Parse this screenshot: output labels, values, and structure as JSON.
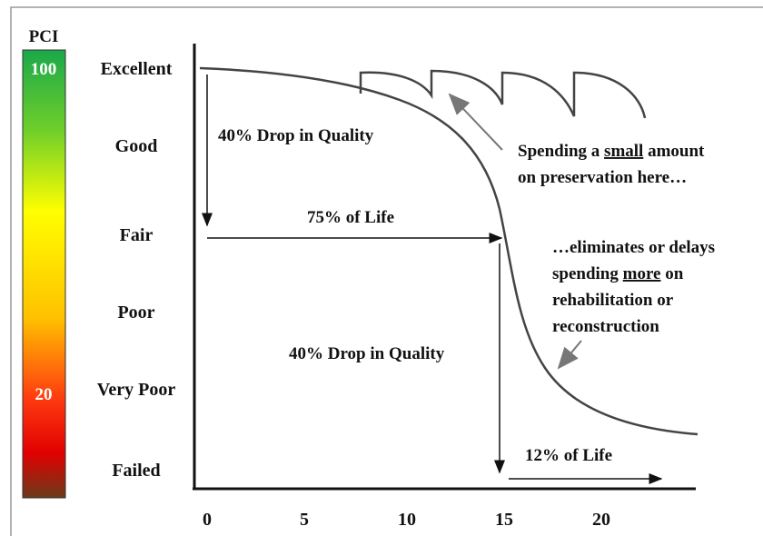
{
  "scale": {
    "title": "PCI",
    "top": "100",
    "low": "20"
  },
  "levels": [
    "Excellent",
    "Good",
    "Fair",
    "Poor",
    "Very Poor",
    "Failed"
  ],
  "x_axis": [
    "0",
    "5",
    "10",
    "15",
    "20"
  ],
  "annotations": {
    "drop_1": "40% Drop in Quality",
    "life_1": "75% of Life",
    "drop_2": "40% Drop in Quality",
    "life_2": "12% of Life",
    "preservation": [
      [
        "Spending a ",
        "small",
        " amount"
      ],
      [
        "on preservation here…"
      ]
    ],
    "rehab": [
      [
        "…eliminates or delays"
      ],
      [
        "spending ",
        "more",
        " on"
      ],
      [
        "rehabilitation or"
      ],
      [
        "reconstruction"
      ]
    ]
  }
}
